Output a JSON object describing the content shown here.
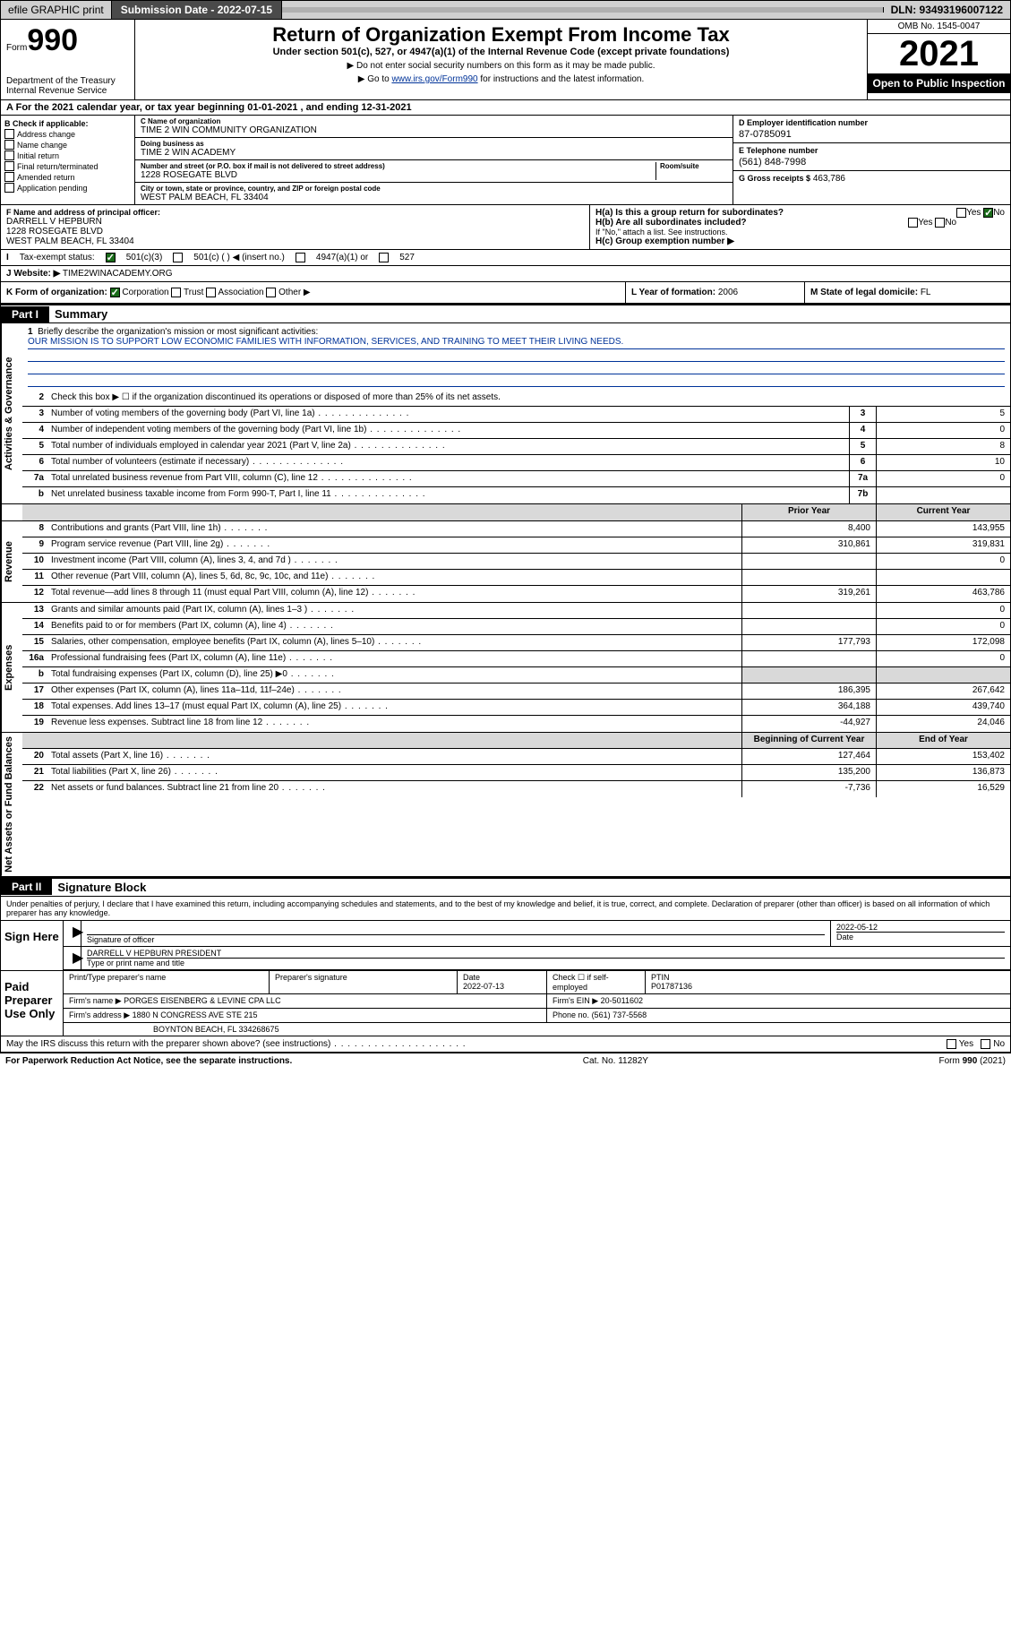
{
  "topbar": {
    "efile": "efile GRAPHIC print",
    "submission_label": "Submission Date - 2022-07-15",
    "dln": "DLN: 93493196007122"
  },
  "header": {
    "form_prefix": "Form",
    "form_num": "990",
    "dept": "Department of the Treasury\nInternal Revenue Service",
    "title": "Return of Organization Exempt From Income Tax",
    "subtitle": "Under section 501(c), 527, or 4947(a)(1) of the Internal Revenue Code (except private foundations)",
    "note1": "▶ Do not enter social security numbers on this form as it may be made public.",
    "note2_pre": "▶ Go to ",
    "note2_link": "www.irs.gov/Form990",
    "note2_post": " for instructions and the latest information.",
    "omb": "OMB No. 1545-0047",
    "year": "2021",
    "inspection": "Open to Public Inspection"
  },
  "A": {
    "text": "For the 2021 calendar year, or tax year beginning 01-01-2021   , and ending 12-31-2021"
  },
  "B": {
    "label": "B Check if applicable:",
    "opts": [
      "Address change",
      "Name change",
      "Initial return",
      "Final return/terminated",
      "Amended return",
      "Application pending"
    ]
  },
  "C": {
    "name_lbl": "C Name of organization",
    "name": "TIME 2 WIN COMMUNITY ORGANIZATION",
    "dba_lbl": "Doing business as",
    "dba": "TIME 2 WIN ACADEMY",
    "addr_lbl": "Number and street (or P.O. box if mail is not delivered to street address)",
    "room_lbl": "Room/suite",
    "addr": "1228 ROSEGATE BLVD",
    "city_lbl": "City or town, state or province, country, and ZIP or foreign postal code",
    "city": "WEST PALM BEACH, FL  33404"
  },
  "D": {
    "lbl": "D Employer identification number",
    "val": "87-0785091"
  },
  "E": {
    "lbl": "E Telephone number",
    "val": "(561) 848-7998"
  },
  "G": {
    "lbl": "G Gross receipts $",
    "val": "463,786"
  },
  "F": {
    "lbl": "F  Name and address of principal officer:",
    "name": "DARRELL V HEPBURN",
    "addr1": "1228 ROSEGATE BLVD",
    "addr2": "WEST PALM BEACH, FL  33404"
  },
  "H": {
    "a": "H(a)  Is this a group return for subordinates?",
    "b": "H(b)  Are all subordinates included?",
    "note": "If \"No,\" attach a list. See instructions.",
    "c": "H(c)  Group exemption number ▶"
  },
  "I": {
    "lbl": "Tax-exempt status:",
    "opts": [
      "501(c)(3)",
      "501(c) (  ) ◀ (insert no.)",
      "4947(a)(1) or",
      "527"
    ]
  },
  "J": {
    "lbl": "Website: ▶",
    "val": "TIME2WINACADEMY.ORG"
  },
  "K": {
    "lbl": "K Form of organization:",
    "opts": [
      "Corporation",
      "Trust",
      "Association",
      "Other ▶"
    ]
  },
  "L": {
    "lbl": "L Year of formation:",
    "val": "2006"
  },
  "M": {
    "lbl": "M State of legal domicile:",
    "val": "FL"
  },
  "part1": {
    "hdr": "Part I",
    "title": "Summary",
    "line1_lbl": "Briefly describe the organization's mission or most significant activities:",
    "mission": "OUR MISSION IS TO SUPPORT LOW ECONOMIC FAMILIES WITH INFORMATION, SERVICES, AND TRAINING TO MEET THEIR LIVING NEEDS.",
    "line2": "Check this box ▶ ☐ if the organization discontinued its operations or disposed of more than 25% of its net assets.",
    "sections": {
      "gov": "Activities & Governance",
      "rev": "Revenue",
      "exp": "Expenses",
      "net": "Net Assets or Fund Balances"
    },
    "rows_single": [
      {
        "n": "3",
        "t": "Number of voting members of the governing body (Part VI, line 1a)",
        "box": "3",
        "v": "5"
      },
      {
        "n": "4",
        "t": "Number of independent voting members of the governing body (Part VI, line 1b)",
        "box": "4",
        "v": "0"
      },
      {
        "n": "5",
        "t": "Total number of individuals employed in calendar year 2021 (Part V, line 2a)",
        "box": "5",
        "v": "8"
      },
      {
        "n": "6",
        "t": "Total number of volunteers (estimate if necessary)",
        "box": "6",
        "v": "10"
      },
      {
        "n": "7a",
        "t": "Total unrelated business revenue from Part VIII, column (C), line 12",
        "box": "7a",
        "v": "0"
      },
      {
        "n": "b",
        "t": "Net unrelated business taxable income from Form 990-T, Part I, line 11",
        "box": "7b",
        "v": ""
      }
    ],
    "col_hdrs": {
      "prior": "Prior Year",
      "current": "Current Year"
    },
    "rows_two": [
      {
        "sec": "rev",
        "n": "8",
        "t": "Contributions and grants (Part VIII, line 1h)",
        "p": "8,400",
        "c": "143,955"
      },
      {
        "sec": "rev",
        "n": "9",
        "t": "Program service revenue (Part VIII, line 2g)",
        "p": "310,861",
        "c": "319,831"
      },
      {
        "sec": "rev",
        "n": "10",
        "t": "Investment income (Part VIII, column (A), lines 3, 4, and 7d )",
        "p": "",
        "c": "0"
      },
      {
        "sec": "rev",
        "n": "11",
        "t": "Other revenue (Part VIII, column (A), lines 5, 6d, 8c, 9c, 10c, and 11e)",
        "p": "",
        "c": ""
      },
      {
        "sec": "rev",
        "n": "12",
        "t": "Total revenue—add lines 8 through 11 (must equal Part VIII, column (A), line 12)",
        "p": "319,261",
        "c": "463,786"
      },
      {
        "sec": "exp",
        "n": "13",
        "t": "Grants and similar amounts paid (Part IX, column (A), lines 1–3 )",
        "p": "",
        "c": "0"
      },
      {
        "sec": "exp",
        "n": "14",
        "t": "Benefits paid to or for members (Part IX, column (A), line 4)",
        "p": "",
        "c": "0"
      },
      {
        "sec": "exp",
        "n": "15",
        "t": "Salaries, other compensation, employee benefits (Part IX, column (A), lines 5–10)",
        "p": "177,793",
        "c": "172,098"
      },
      {
        "sec": "exp",
        "n": "16a",
        "t": "Professional fundraising fees (Part IX, column (A), line 11e)",
        "p": "",
        "c": "0"
      },
      {
        "sec": "exp",
        "n": "b",
        "t": "Total fundraising expenses (Part IX, column (D), line 25) ▶0",
        "p": "shade",
        "c": "shade"
      },
      {
        "sec": "exp",
        "n": "17",
        "t": "Other expenses (Part IX, column (A), lines 11a–11d, 11f–24e)",
        "p": "186,395",
        "c": "267,642"
      },
      {
        "sec": "exp",
        "n": "18",
        "t": "Total expenses. Add lines 13–17 (must equal Part IX, column (A), line 25)",
        "p": "364,188",
        "c": "439,740"
      },
      {
        "sec": "exp",
        "n": "19",
        "t": "Revenue less expenses. Subtract line 18 from line 12",
        "p": "-44,927",
        "c": "24,046"
      }
    ],
    "col_hdrs2": {
      "begin": "Beginning of Current Year",
      "end": "End of Year"
    },
    "rows_net": [
      {
        "n": "20",
        "t": "Total assets (Part X, line 16)",
        "p": "127,464",
        "c": "153,402"
      },
      {
        "n": "21",
        "t": "Total liabilities (Part X, line 26)",
        "p": "135,200",
        "c": "136,873"
      },
      {
        "n": "22",
        "t": "Net assets or fund balances. Subtract line 21 from line 20",
        "p": "-7,736",
        "c": "16,529"
      }
    ]
  },
  "part2": {
    "hdr": "Part II",
    "title": "Signature Block",
    "decl": "Under penalties of perjury, I declare that I have examined this return, including accompanying schedules and statements, and to the best of my knowledge and belief, it is true, correct, and complete. Declaration of preparer (other than officer) is based on all information of which preparer has any knowledge.",
    "sign_here": "Sign Here",
    "sig_officer": "Signature of officer",
    "date": "Date",
    "sig_date": "2022-05-12",
    "officer_name": "DARRELL V HEPBURN  PRESIDENT",
    "type_name": "Type or print name and title",
    "paid": "Paid Preparer Use Only",
    "prep_name_lbl": "Print/Type preparer's name",
    "prep_sig_lbl": "Preparer's signature",
    "prep_date_lbl": "Date",
    "prep_date": "2022-07-13",
    "check_if": "Check ☐ if self-employed",
    "ptin_lbl": "PTIN",
    "ptin": "P01787136",
    "firm_name_lbl": "Firm's name    ▶",
    "firm_name": "PORGES EISENBERG & LEVINE CPA LLC",
    "firm_ein_lbl": "Firm's EIN ▶",
    "firm_ein": "20-5011602",
    "firm_addr_lbl": "Firm's address ▶",
    "firm_addr1": "1880 N CONGRESS AVE STE 215",
    "firm_addr2": "BOYNTON BEACH, FL  334268675",
    "phone_lbl": "Phone no.",
    "phone": "(561) 737-5568",
    "may_irs": "May the IRS discuss this return with the preparer shown above? (see instructions)"
  },
  "footer": {
    "pra": "For Paperwork Reduction Act Notice, see the separate instructions.",
    "cat": "Cat. No. 11282Y",
    "form": "Form 990 (2021)"
  }
}
